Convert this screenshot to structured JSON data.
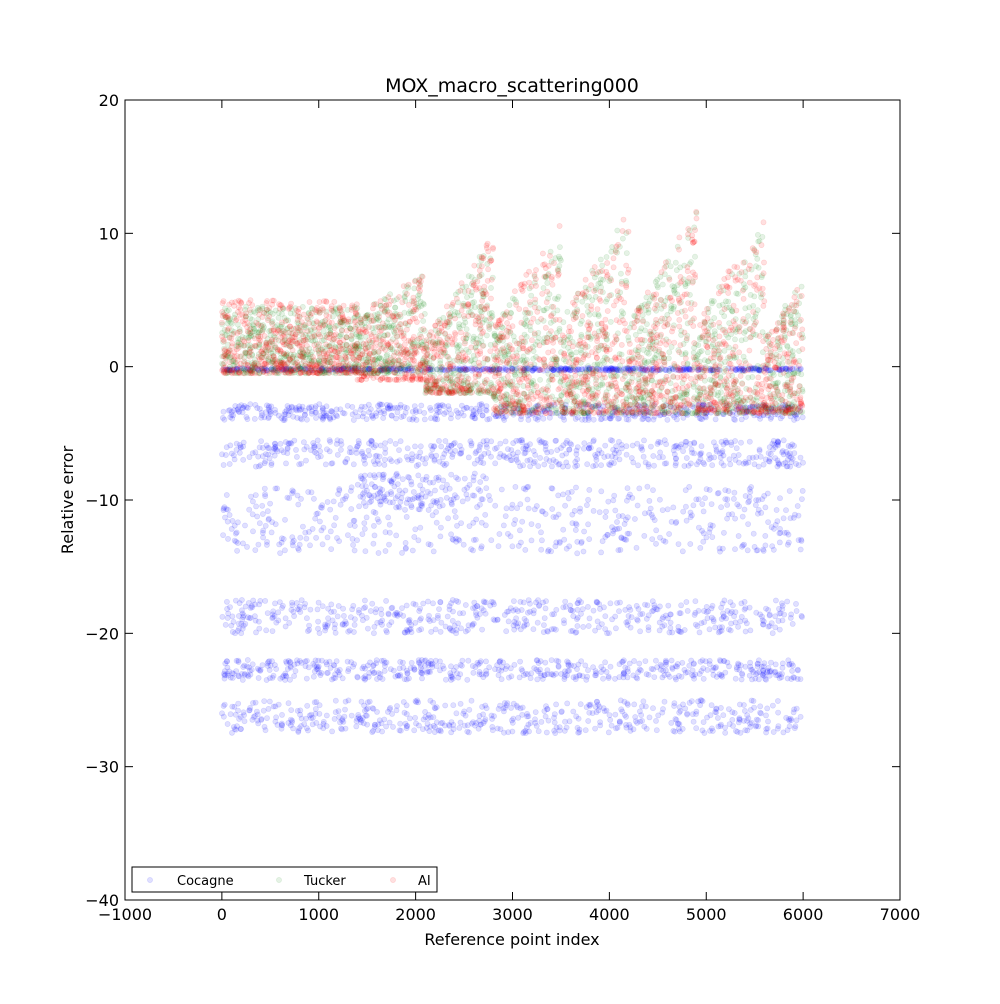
{
  "chart_data": {
    "type": "scatter",
    "title": "MOX_macro_scattering000",
    "xlabel": "Reference point index",
    "ylabel": "Relative error",
    "xlim": [
      -1000,
      7000
    ],
    "ylim": [
      -40,
      20
    ],
    "xticks": [
      -1000,
      0,
      1000,
      2000,
      3000,
      4000,
      5000,
      6000,
      7000
    ],
    "yticks": [
      -40,
      -30,
      -20,
      -10,
      0,
      10,
      20
    ],
    "xtick_labels": [
      "−1000",
      "0",
      "1000",
      "2000",
      "3000",
      "4000",
      "5000",
      "6000",
      "7000"
    ],
    "ytick_labels": [
      "−40",
      "−30",
      "−20",
      "−10",
      "0",
      "10",
      "20"
    ],
    "grid": false,
    "legend_placement": "lower-left",
    "index_range": [
      0,
      6000
    ],
    "series": [
      {
        "name": "Cocagne",
        "color": "#0000ff",
        "opacity": 0.12,
        "bands": [
          {
            "y_from": -0.3,
            "y_to": -0.1,
            "x_from": 0,
            "x_to": 6000
          },
          {
            "y_from": -4.0,
            "y_to": -2.8,
            "x_from": 0,
            "x_to": 6000
          },
          {
            "y_from": -7.5,
            "y_to": -5.5,
            "x_from": 0,
            "x_to": 6000
          },
          {
            "y_from": -10.5,
            "y_to": -8.0,
            "x_from": 1400,
            "x_to": 2800
          },
          {
            "y_from": -14.0,
            "y_to": -9.0,
            "x_from": 0,
            "x_to": 6000
          },
          {
            "y_from": -20.0,
            "y_to": -17.5,
            "x_from": 0,
            "x_to": 6000
          },
          {
            "y_from": -23.5,
            "y_to": -22.0,
            "x_from": 0,
            "x_to": 6000
          },
          {
            "y_from": -27.5,
            "y_to": -25.0,
            "x_from": 0,
            "x_to": 6000
          }
        ]
      },
      {
        "name": "Tucker",
        "color": "#008000",
        "opacity": 0.1,
        "segments": [
          {
            "x_from": 0,
            "x_to": 1400,
            "y_low": -0.5,
            "y_high_start": 4.5,
            "y_high_end": 4.5
          },
          {
            "x_from": 1400,
            "x_to": 2100,
            "y_low": -0.5,
            "y_high_start": 4.0,
            "y_high_end": 7.0
          },
          {
            "x_from": 2100,
            "x_to": 2800,
            "y_low": -2.0,
            "y_high_start": 2.0,
            "y_high_end": 10.0
          },
          {
            "x_from": 2800,
            "x_to": 3500,
            "y_low": -3.5,
            "y_high_start": 3.0,
            "y_high_end": 11.2
          },
          {
            "x_from": 3500,
            "x_to": 4200,
            "y_low": -3.5,
            "y_high_start": 3.5,
            "y_high_end": 11.8
          },
          {
            "x_from": 4200,
            "x_to": 4900,
            "y_low": -3.5,
            "y_high_start": 3.5,
            "y_high_end": 11.8
          },
          {
            "x_from": 4900,
            "x_to": 5600,
            "y_low": -3.5,
            "y_high_start": 3.5,
            "y_high_end": 11.5
          },
          {
            "x_from": 5600,
            "x_to": 6000,
            "y_low": -3.5,
            "y_high_start": 2.5,
            "y_high_end": 6.5
          }
        ]
      },
      {
        "name": "AI",
        "color": "#ff0000",
        "opacity": 0.12,
        "segments": [
          {
            "x_from": 0,
            "x_to": 1400,
            "y_low": -0.5,
            "y_high_start": 5.0,
            "y_high_end": 5.0
          },
          {
            "x_from": 1400,
            "x_to": 2100,
            "y_low": -1.0,
            "y_high_start": 4.0,
            "y_high_end": 7.0
          },
          {
            "x_from": 2100,
            "x_to": 2800,
            "y_low": -2.0,
            "y_high_start": 2.0,
            "y_high_end": 10.0
          },
          {
            "x_from": 2800,
            "x_to": 3500,
            "y_low": -3.5,
            "y_high_start": 3.0,
            "y_high_end": 11.3
          },
          {
            "x_from": 3500,
            "x_to": 4200,
            "y_low": -3.5,
            "y_high_start": 3.5,
            "y_high_end": 11.8
          },
          {
            "x_from": 4200,
            "x_to": 4900,
            "y_low": -3.5,
            "y_high_start": 3.5,
            "y_high_end": 11.8
          },
          {
            "x_from": 4900,
            "x_to": 5600,
            "y_low": -3.5,
            "y_high_start": 3.5,
            "y_high_end": 11.7
          },
          {
            "x_from": 5600,
            "x_to": 6000,
            "y_low": -3.5,
            "y_high_start": 2.5,
            "y_high_end": 6.5
          }
        ]
      }
    ]
  }
}
